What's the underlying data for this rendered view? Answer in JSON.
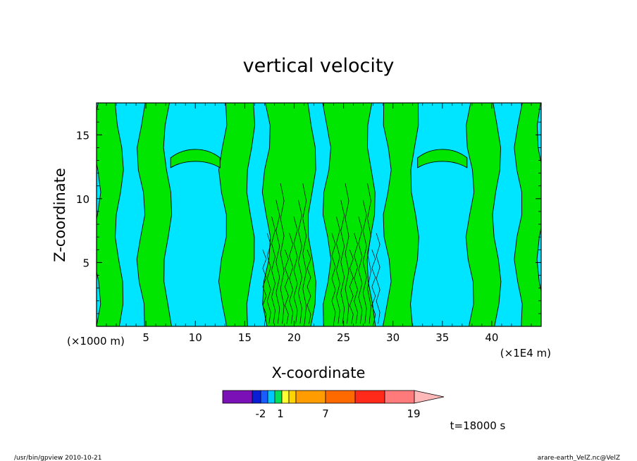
{
  "chart_data": {
    "type": "contour",
    "title": "vertical velocity",
    "xlabel": "X-coordinate",
    "ylabel": "Z-coordinate",
    "x_unit_left": "(×1000 m)",
    "x_unit_right": "(×1E4 m)",
    "xlim": [
      0,
      45
    ],
    "ylim": [
      0,
      17.5
    ],
    "x_ticks": [
      "5",
      "10",
      "15",
      "20",
      "25",
      "30",
      "35",
      "40"
    ],
    "x_tick_values": [
      5,
      10,
      15,
      20,
      25,
      30,
      35,
      40
    ],
    "y_ticks": [
      "5",
      "10",
      "15"
    ],
    "y_tick_values": [
      5,
      10,
      15
    ],
    "colors": {
      "background_level": "#00e5ff",
      "positive_level": "#00e600",
      "contour_line": "#000000"
    },
    "green_columns_x": [
      [
        0,
        2.3
      ],
      [
        4.5,
        7.2
      ],
      [
        12.8,
        15.6
      ],
      [
        17.2,
        21.8
      ],
      [
        23.3,
        27.8
      ],
      [
        29.4,
        32.2
      ],
      [
        37.8,
        40.5
      ],
      [
        42.7,
        45
      ]
    ],
    "colorbar": {
      "labels": [
        "-2",
        "1",
        "7",
        "19"
      ],
      "colors": [
        "#7a10b5",
        "#0a1ed6",
        "#1a5cff",
        "#00c8ff",
        "#00e05a",
        "#ffff33",
        "#ffd400",
        "#ff9d00",
        "#ff6a00",
        "#ff2a1a",
        "#ff7a7a",
        "#ffb8b8"
      ]
    },
    "time_label": "t=18000 s"
  },
  "footer": {
    "left": "/usr/bin/gpview   2010-10-21",
    "right": "arare-earth_VelZ.nc@VelZ"
  }
}
